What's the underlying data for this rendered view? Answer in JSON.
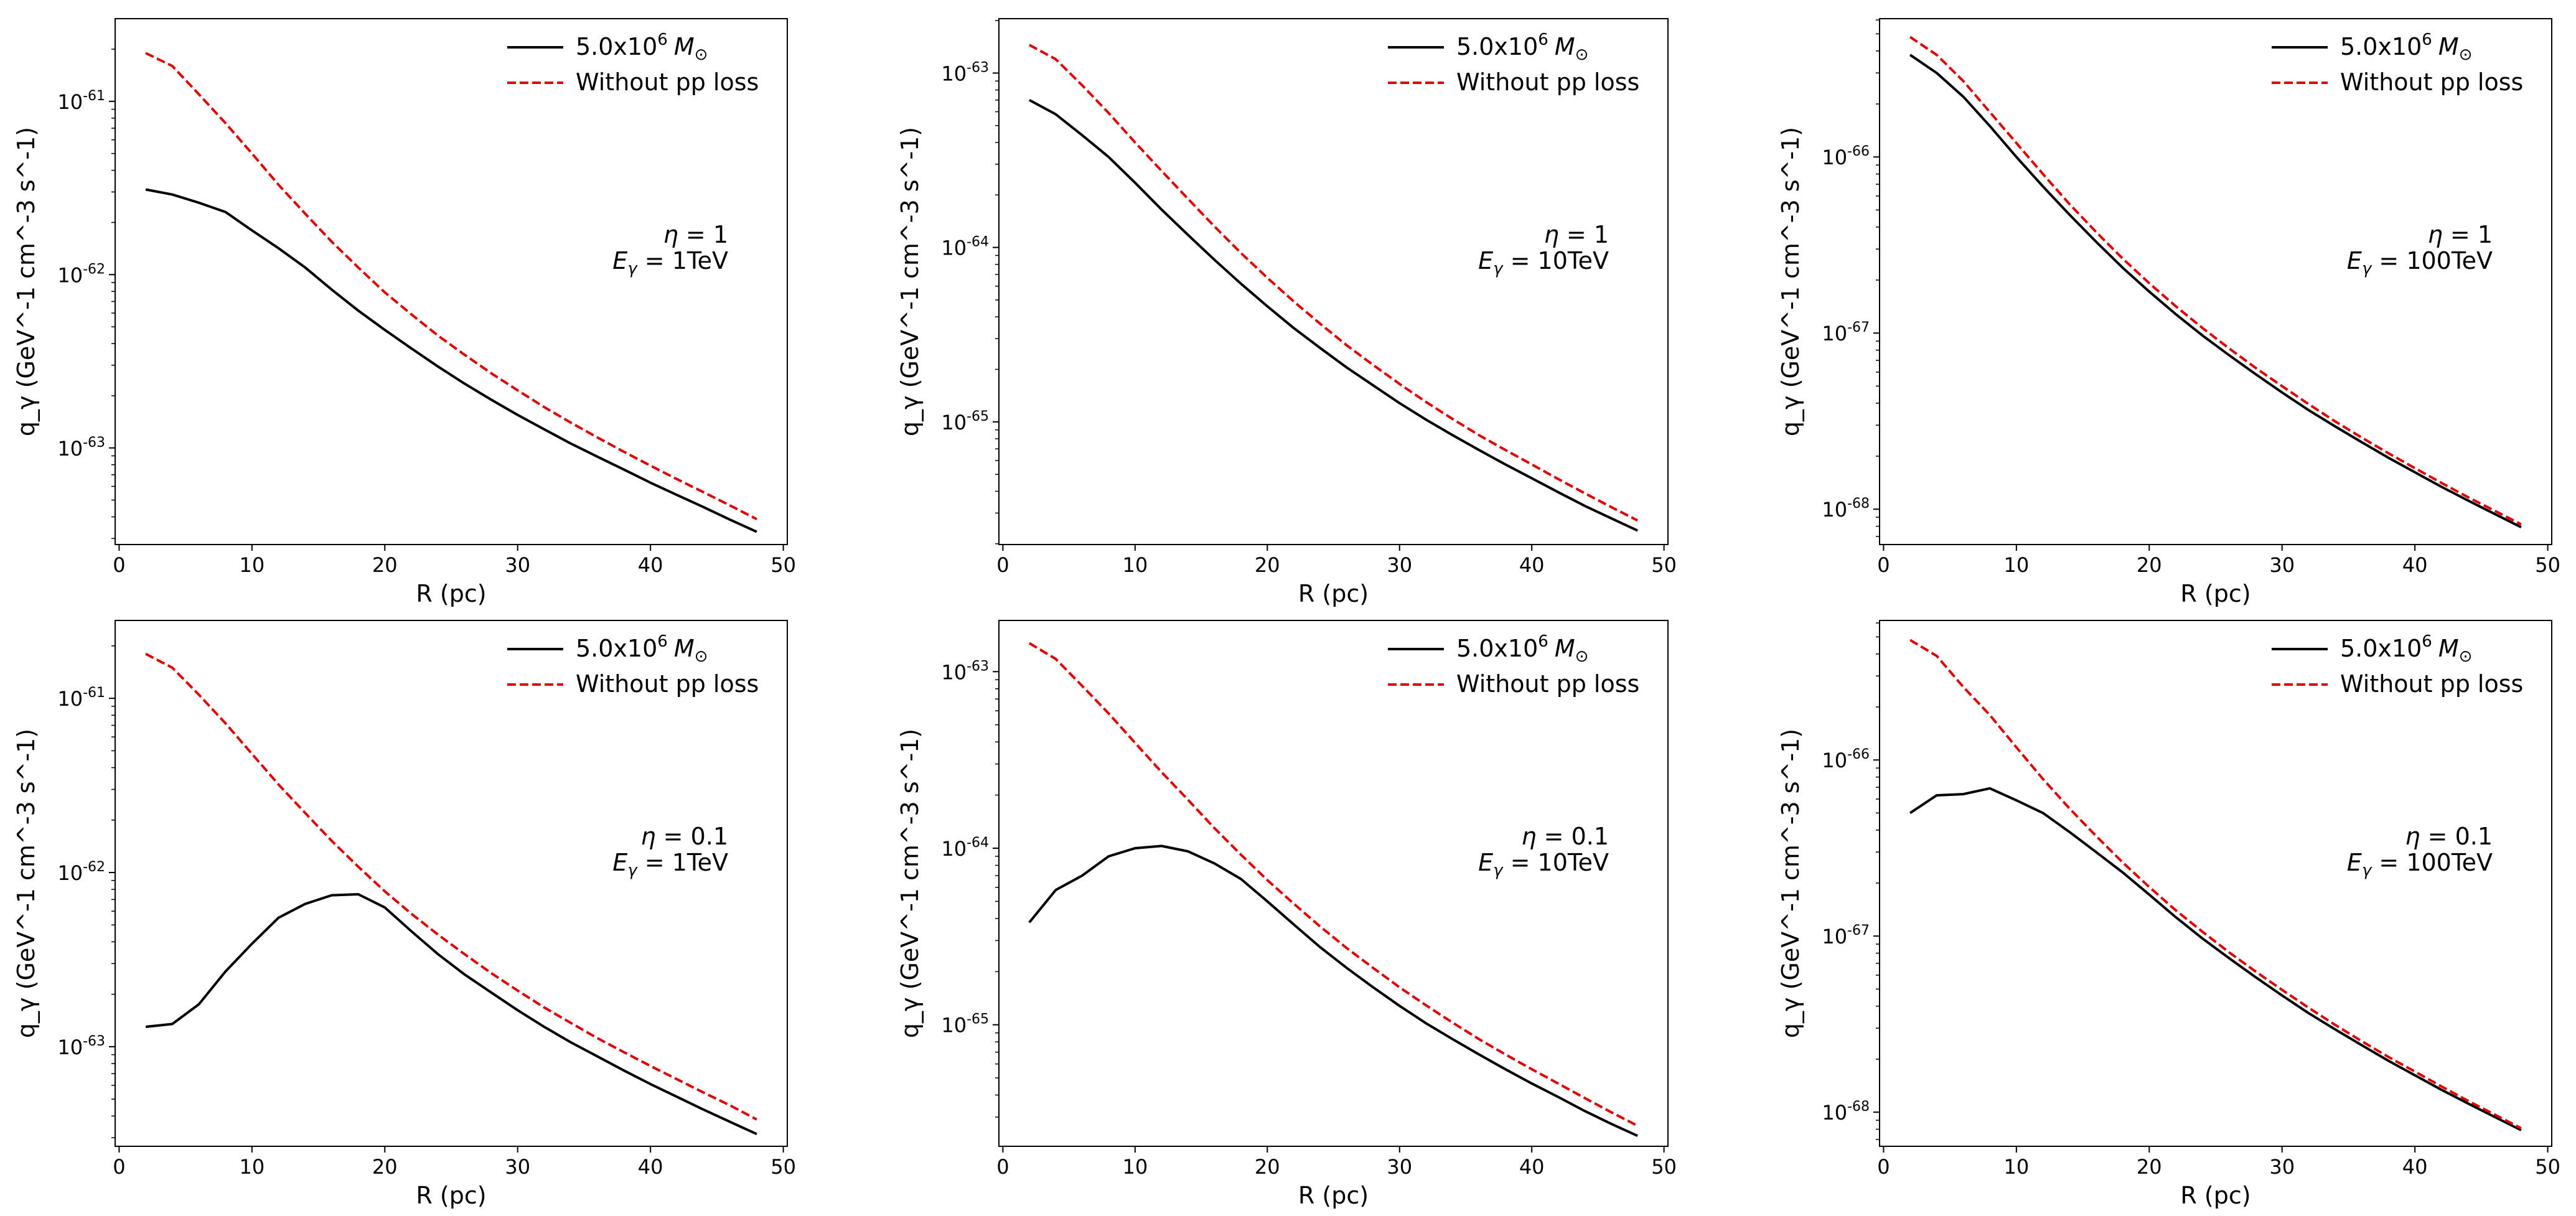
{
  "figure": {
    "panels_count": 6,
    "layout": "2 rows x 3 columns"
  },
  "chart_data": [
    {
      "type": "line",
      "panel": "top-left",
      "title": "",
      "xlabel": "R (pc)",
      "ylabel": "q_γ (GeV^-1 cm^-3 s^-1)",
      "xlim": [
        -0.3,
        50.3
      ],
      "ylim": [
        2.77e-64,
        3e-61
      ],
      "yscale": "log",
      "xticks": [
        0,
        10,
        20,
        30,
        40,
        50
      ],
      "yticks": [
        {
          "exp": "-61",
          "value": 1e-61
        },
        {
          "exp": "-62",
          "value": 1e-62
        },
        {
          "exp": "-63",
          "value": 1e-63
        }
      ],
      "annotation": {
        "eta_value": "1",
        "energy_value": "1TeV"
      },
      "legend": {
        "position": "upper-right",
        "mass_base": "5.0x10",
        "mass_exp": "6",
        "mass_unit": "M",
        "mass_sub": "⊙",
        "nopp_label": "Without pp loss"
      },
      "x": [
        2,
        4,
        6,
        8,
        10,
        12,
        14,
        16,
        18,
        20,
        22,
        24,
        26,
        28,
        30,
        32,
        34,
        36,
        38,
        40,
        42,
        44,
        46,
        48
      ],
      "series": [
        {
          "name": "5.0x10^6 M⊙",
          "color": "#000000",
          "dash": "solid",
          "values": [
            3.1e-62,
            2.9e-62,
            2.6e-62,
            2.3e-62,
            1.8e-62,
            1.42e-62,
            1.1e-62,
            8.2e-63,
            6.2e-63,
            4.8e-63,
            3.75e-63,
            2.95e-63,
            2.35e-63,
            1.9e-63,
            1.55e-63,
            1.28e-63,
            1.06e-63,
            8.9e-64,
            7.5e-64,
            6.3e-64,
            5.35e-64,
            4.55e-64,
            3.85e-64,
            3.28e-64
          ]
        },
        {
          "name": "Without pp loss",
          "color": "#e00000",
          "dash": "dashed",
          "values": [
            1.9e-61,
            1.6e-61,
            1.1e-61,
            7.5e-62,
            5e-62,
            3.3e-62,
            2.25e-62,
            1.55e-62,
            1.1e-62,
            7.9e-63,
            5.9e-63,
            4.45e-63,
            3.45e-63,
            2.7e-63,
            2.15e-63,
            1.72e-63,
            1.4e-63,
            1.15e-63,
            9.5e-64,
            7.9e-64,
            6.6e-64,
            5.55e-64,
            4.65e-64,
            3.88e-64
          ]
        }
      ]
    },
    {
      "type": "line",
      "panel": "top-middle",
      "title": "",
      "xlabel": "R (pc)",
      "ylabel": "q_γ (GeV^-1 cm^-3 s^-1)",
      "xlim": [
        -0.3,
        50.3
      ],
      "ylim": [
        1.98e-66,
        2.05e-63
      ],
      "yscale": "log",
      "xticks": [
        0,
        10,
        20,
        30,
        40,
        50
      ],
      "yticks": [
        {
          "exp": "-63",
          "value": 1e-63
        },
        {
          "exp": "-64",
          "value": 1e-64
        },
        {
          "exp": "-65",
          "value": 1e-65
        }
      ],
      "annotation": {
        "eta_value": "1",
        "energy_value": "10TeV"
      },
      "legend": {
        "position": "upper-right",
        "mass_base": "5.0x10",
        "mass_exp": "6",
        "mass_unit": "M",
        "mass_sub": "⊙",
        "nopp_label": "Without pp loss"
      },
      "x": [
        2,
        4,
        6,
        8,
        10,
        12,
        14,
        16,
        18,
        20,
        22,
        24,
        26,
        28,
        30,
        32,
        34,
        36,
        38,
        40,
        42,
        44,
        46,
        48
      ],
      "series": [
        {
          "name": "5.0x10^6 M⊙",
          "color": "#000000",
          "dash": "solid",
          "values": [
            7e-64,
            5.8e-64,
            4.4e-64,
            3.3e-64,
            2.35e-64,
            1.65e-64,
            1.18e-64,
            8.5e-65,
            6.2e-65,
            4.6e-65,
            3.45e-65,
            2.65e-65,
            2.05e-65,
            1.62e-65,
            1.28e-65,
            1.03e-65,
            8.4e-66,
            6.9e-66,
            5.7e-66,
            4.75e-66,
            3.95e-66,
            3.3e-66,
            2.8e-66,
            2.38e-66
          ]
        },
        {
          "name": "Without pp loss",
          "color": "#e00000",
          "dash": "dashed",
          "values": [
            1.45e-63,
            1.2e-63,
            8.5e-64,
            5.9e-64,
            4e-64,
            2.75e-64,
            1.9e-64,
            1.32e-64,
            9.3e-65,
            6.7e-65,
            4.9e-65,
            3.65e-65,
            2.75e-65,
            2.12e-65,
            1.65e-65,
            1.3e-65,
            1.04e-65,
            8.4e-66,
            6.9e-66,
            5.7e-66,
            4.7e-66,
            3.9e-66,
            3.25e-66,
            2.72e-66
          ]
        }
      ]
    },
    {
      "type": "line",
      "panel": "top-right",
      "title": "",
      "xlabel": "R (pc)",
      "ylabel": "q_γ (GeV^-1 cm^-3 s^-1)",
      "xlim": [
        -0.3,
        50.3
      ],
      "ylim": [
        6.3e-69,
        6.1e-66
      ],
      "yscale": "log",
      "xticks": [
        0,
        10,
        20,
        30,
        40,
        50
      ],
      "yticks": [
        {
          "exp": "-66",
          "value": 1e-66
        },
        {
          "exp": "-67",
          "value": 1e-67
        },
        {
          "exp": "-68",
          "value": 1e-68
        }
      ],
      "annotation": {
        "eta_value": "1",
        "energy_value": "100TeV"
      },
      "legend": {
        "position": "upper-right",
        "mass_base": "5.0x10",
        "mass_exp": "6",
        "mass_unit": "M",
        "mass_sub": "⊙",
        "nopp_label": "Without pp loss"
      },
      "x": [
        2,
        4,
        6,
        8,
        10,
        12,
        14,
        16,
        18,
        20,
        22,
        24,
        26,
        28,
        30,
        32,
        34,
        36,
        38,
        40,
        42,
        44,
        46,
        48
      ],
      "series": [
        {
          "name": "5.0x10^6 M⊙",
          "color": "#000000",
          "dash": "solid",
          "values": [
            3.8e-66,
            3e-66,
            2.2e-66,
            1.5e-66,
            1e-66,
            6.8e-67,
            4.7e-67,
            3.3e-67,
            2.35e-67,
            1.72e-67,
            1.28e-67,
            9.7e-68,
            7.5e-68,
            5.85e-68,
            4.6e-68,
            3.65e-68,
            2.95e-68,
            2.4e-68,
            1.96e-68,
            1.62e-68,
            1.34e-68,
            1.12e-68,
            9.4e-69,
            7.9e-69
          ]
        },
        {
          "name": "Without pp loss",
          "color": "#e00000",
          "dash": "dashed",
          "values": [
            4.8e-66,
            3.8e-66,
            2.7e-66,
            1.8e-66,
            1.2e-66,
            8e-67,
            5.4e-67,
            3.75e-67,
            2.65e-67,
            1.92e-67,
            1.42e-67,
            1.07e-67,
            8.2e-68,
            6.35e-68,
            5e-68,
            3.95e-68,
            3.15e-68,
            2.55e-68,
            2.08e-68,
            1.71e-68,
            1.41e-68,
            1.17e-68,
            9.8e-69,
            8.2e-69
          ]
        }
      ]
    },
    {
      "type": "line",
      "panel": "bottom-left",
      "title": "",
      "xlabel": "R (pc)",
      "ylabel": "q_γ (GeV^-1 cm^-3 s^-1)",
      "xlim": [
        -0.3,
        50.3
      ],
      "ylim": [
        2.68e-64,
        2.8e-61
      ],
      "yscale": "log",
      "xticks": [
        0,
        10,
        20,
        30,
        40,
        50
      ],
      "yticks": [
        {
          "exp": "-61",
          "value": 1e-61
        },
        {
          "exp": "-62",
          "value": 1e-62
        },
        {
          "exp": "-63",
          "value": 1e-63
        }
      ],
      "annotation": {
        "eta_value": "0.1",
        "energy_value": "1TeV"
      },
      "legend": {
        "position": "upper-right",
        "mass_base": "5.0x10",
        "mass_exp": "6",
        "mass_unit": "M",
        "mass_sub": "⊙",
        "nopp_label": "Without pp loss"
      },
      "x": [
        2,
        4,
        6,
        8,
        10,
        12,
        14,
        16,
        18,
        20,
        22,
        24,
        26,
        28,
        30,
        32,
        34,
        36,
        38,
        40,
        42,
        44,
        46,
        48
      ],
      "series": [
        {
          "name": "5.0x10^6 M⊙",
          "color": "#000000",
          "dash": "solid",
          "values": [
            1.3e-63,
            1.35e-63,
            1.75e-63,
            2.7e-63,
            3.9e-63,
            5.5e-63,
            6.6e-63,
            7.4e-63,
            7.5e-63,
            6.3e-63,
            4.6e-63,
            3.4e-63,
            2.6e-63,
            2.05e-63,
            1.62e-63,
            1.3e-63,
            1.06e-63,
            8.8e-64,
            7.3e-64,
            6.1e-64,
            5.15e-64,
            4.35e-64,
            3.7e-64,
            3.15e-64
          ]
        },
        {
          "name": "Without pp loss",
          "color": "#e00000",
          "dash": "dashed",
          "values": [
            1.8e-61,
            1.5e-61,
            1.05e-61,
            7.2e-62,
            4.8e-62,
            3.2e-62,
            2.2e-62,
            1.52e-62,
            1.08e-62,
            7.8e-63,
            5.8e-63,
            4.4e-63,
            3.4e-63,
            2.65e-63,
            2.1e-63,
            1.68e-63,
            1.37e-63,
            1.12e-63,
            9.3e-64,
            7.75e-64,
            6.5e-64,
            5.45e-64,
            4.6e-64,
            3.82e-64
          ]
        }
      ]
    },
    {
      "type": "line",
      "panel": "bottom-middle",
      "title": "",
      "xlabel": "R (pc)",
      "ylabel": "q_γ (GeV^-1 cm^-3 s^-1)",
      "xlim": [
        -0.3,
        50.3
      ],
      "ylim": [
        2.05e-66,
        1.95e-63
      ],
      "yscale": "log",
      "xticks": [
        0,
        10,
        20,
        30,
        40,
        50
      ],
      "yticks": [
        {
          "exp": "-63",
          "value": 1e-63
        },
        {
          "exp": "-64",
          "value": 1e-64
        },
        {
          "exp": "-65",
          "value": 1e-65
        }
      ],
      "annotation": {
        "eta_value": "0.1",
        "energy_value": "10TeV"
      },
      "legend": {
        "position": "upper-right",
        "mass_base": "5.0x10",
        "mass_exp": "6",
        "mass_unit": "M",
        "mass_sub": "⊙",
        "nopp_label": "Without pp loss"
      },
      "x": [
        2,
        4,
        6,
        8,
        10,
        12,
        14,
        16,
        18,
        20,
        22,
        24,
        26,
        28,
        30,
        32,
        34,
        36,
        38,
        40,
        42,
        44,
        46,
        48
      ],
      "series": [
        {
          "name": "5.0x10^6 M⊙",
          "color": "#000000",
          "dash": "solid",
          "values": [
            3.8e-65,
            5.8e-65,
            7e-65,
            9e-65,
            1e-64,
            1.03e-64,
            9.6e-65,
            8.2e-65,
            6.7e-65,
            5e-65,
            3.7e-65,
            2.75e-65,
            2.1e-65,
            1.63e-65,
            1.28e-65,
            1.02e-65,
            8.3e-66,
            6.8e-66,
            5.6e-66,
            4.65e-66,
            3.9e-66,
            3.25e-66,
            2.75e-66,
            2.35e-66
          ]
        },
        {
          "name": "Without pp loss",
          "color": "#e00000",
          "dash": "dashed",
          "values": [
            1.45e-63,
            1.18e-63,
            8.3e-64,
            5.8e-64,
            3.95e-64,
            2.7e-64,
            1.88e-64,
            1.3e-64,
            9.2e-65,
            6.6e-65,
            4.85e-65,
            3.6e-65,
            2.72e-65,
            2.1e-65,
            1.63e-65,
            1.29e-65,
            1.03e-65,
            8.3e-66,
            6.8e-66,
            5.6e-66,
            4.65e-66,
            3.85e-66,
            3.2e-66,
            2.68e-66
          ]
        }
      ]
    },
    {
      "type": "line",
      "panel": "bottom-right",
      "title": "",
      "xlabel": "R (pc)",
      "ylabel": "q_γ (GeV^-1 cm^-3 s^-1)",
      "xlim": [
        -0.3,
        50.3
      ],
      "ylim": [
        6.4e-69,
        6.2e-66
      ],
      "yscale": "log",
      "xticks": [
        0,
        10,
        20,
        30,
        40,
        50
      ],
      "yticks": [
        {
          "exp": "-66",
          "value": 1e-66
        },
        {
          "exp": "-67",
          "value": 1e-67
        },
        {
          "exp": "-68",
          "value": 1e-68
        }
      ],
      "annotation": {
        "eta_value": "0.1",
        "energy_value": "100TeV"
      },
      "legend": {
        "position": "upper-right",
        "mass_base": "5.0x10",
        "mass_exp": "6",
        "mass_unit": "M",
        "mass_sub": "⊙",
        "nopp_label": "Without pp loss"
      },
      "x": [
        2,
        4,
        6,
        8,
        10,
        12,
        14,
        16,
        18,
        20,
        22,
        24,
        26,
        28,
        30,
        32,
        34,
        36,
        38,
        40,
        42,
        44,
        46,
        48
      ],
      "series": [
        {
          "name": "5.0x10^6 M⊙",
          "color": "#000000",
          "dash": "solid",
          "values": [
            5e-67,
            6.3e-67,
            6.4e-67,
            6.9e-67,
            5.9e-67,
            5e-67,
            3.9e-67,
            3e-67,
            2.3e-67,
            1.72e-67,
            1.28e-67,
            9.7e-68,
            7.5e-68,
            5.85e-68,
            4.6e-68,
            3.65e-68,
            2.95e-68,
            2.4e-68,
            1.96e-68,
            1.62e-68,
            1.34e-68,
            1.12e-68,
            9.4e-69,
            7.9e-69
          ]
        },
        {
          "name": "Without pp loss",
          "color": "#e00000",
          "dash": "dashed",
          "values": [
            4.8e-66,
            3.9e-66,
            2.6e-66,
            1.8e-66,
            1.18e-66,
            7.8e-67,
            5.3e-67,
            3.7e-67,
            2.62e-67,
            1.9e-67,
            1.4e-67,
            1.06e-67,
            8.1e-68,
            6.3e-68,
            4.95e-68,
            3.92e-68,
            3.13e-68,
            2.53e-68,
            2.06e-68,
            1.7e-68,
            1.4e-68,
            1.16e-68,
            9.7e-69,
            8.1e-69
          ]
        }
      ]
    }
  ]
}
